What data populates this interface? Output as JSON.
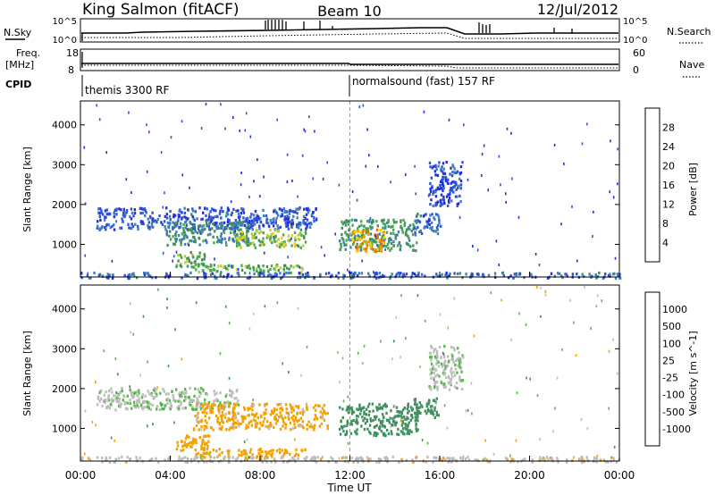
{
  "header": {
    "station": "King Salmon (fitACF)",
    "beam": "Beam 10",
    "date": "12/Jul/2012"
  },
  "top_panels": {
    "nsky_label": "N.Sky",
    "nsky_ticks": [
      "10^5",
      "10^0"
    ],
    "nsearch_ticks": [
      "10^5",
      "10^0"
    ],
    "nsearch_label": "N.Search",
    "freq_label_1": "Freq.",
    "freq_label_2": "[MHz]",
    "freq_ticks": [
      "18",
      "8"
    ],
    "nave_ticks": [
      "60",
      "0"
    ],
    "nave_label": "Nave",
    "cpid_label": "CPID",
    "cpid_segments": [
      {
        "label": "themis 3300 RF",
        "start_hour": 0
      },
      {
        "label": "normalsound (fast) 157 RF",
        "start_hour": 12
      }
    ]
  },
  "time_axis": {
    "label": "Time UT",
    "ticks": [
      "00:00",
      "04:00",
      "08:00",
      "12:00",
      "16:00",
      "20:00",
      "00:00"
    ]
  },
  "colors": {
    "power_scale": [
      "#1e2ee0",
      "#2f52d8",
      "#3f7fb8",
      "#3f8f5f",
      "#46aa48",
      "#b8c840",
      "#f0d000",
      "#f5a000",
      "#f06a00",
      "#e81c00"
    ],
    "velocity_scale": [
      "#2030c8",
      "#3a6eb8",
      "#3f8f5f",
      "#55b848",
      "#bdbdbd",
      "#bdbdbd",
      "#f5a000",
      "#f07800",
      "#ea4600",
      "#e81c00"
    ]
  },
  "chart_data": [
    {
      "type": "heatmap",
      "panel": "power",
      "ylabel": "Slant Range [km]",
      "xlabel": "",
      "y_ticks": [
        "1000",
        "2000",
        "3000",
        "4000"
      ],
      "ylim": [
        180,
        4600
      ],
      "xlim_hours": [
        0,
        24
      ],
      "colorbar": {
        "label": "Power [dB]",
        "ticks": [
          "4",
          "8",
          "12",
          "16",
          "20",
          "24",
          "28"
        ],
        "range": [
          0,
          32
        ]
      },
      "echo_regions": [
        {
          "t0": 0.7,
          "t1": 10.5,
          "r0": 1400,
          "r1": 1950,
          "value": 5
        },
        {
          "t0": 3.8,
          "t1": 7.5,
          "r0": 1000,
          "r1": 1600,
          "value": 10
        },
        {
          "t0": 4.2,
          "t1": 5.6,
          "r0": 450,
          "r1": 850,
          "value": 14
        },
        {
          "t0": 5.0,
          "t1": 10.0,
          "r0": 300,
          "r1": 520,
          "value": 14
        },
        {
          "t0": 6.8,
          "t1": 10.0,
          "r0": 950,
          "r1": 1400,
          "value": 16
        },
        {
          "t0": 11.5,
          "t1": 15.0,
          "r0": 850,
          "r1": 1650,
          "value": 12
        },
        {
          "t0": 12.0,
          "t1": 13.5,
          "r0": 850,
          "r1": 1400,
          "value": 24
        },
        {
          "t0": 14.8,
          "t1": 16.0,
          "r0": 1300,
          "r1": 1800,
          "value": 6
        },
        {
          "t0": 15.5,
          "t1": 17.0,
          "r0": 2000,
          "r1": 3100,
          "value": 4
        },
        {
          "t0": 0.0,
          "t1": 24.0,
          "r0": 180,
          "r1": 320,
          "value": 6
        }
      ]
    },
    {
      "type": "heatmap",
      "panel": "velocity",
      "ylabel": "Slant Range [km]",
      "xlabel": "Time UT",
      "y_ticks": [
        "1000",
        "2000",
        "3000",
        "4000"
      ],
      "ylim": [
        180,
        4600
      ],
      "xlim_hours": [
        0,
        24
      ],
      "colorbar": {
        "label": "Velocity [m s^-1]",
        "ticks": [
          "1000",
          "500",
          "100",
          "25",
          "-25",
          "-100",
          "-500",
          "-1000"
        ]
      },
      "echo_regions": [
        {
          "t0": 0.7,
          "t1": 7.0,
          "r0": 1500,
          "r1": 2050,
          "value": 0
        },
        {
          "t0": 5.0,
          "t1": 11.0,
          "r0": 1000,
          "r1": 1650,
          "value": -150
        },
        {
          "t0": 4.2,
          "t1": 5.8,
          "r0": 450,
          "r1": 850,
          "value": -300
        },
        {
          "t0": 5.0,
          "t1": 10.0,
          "r0": 300,
          "r1": 520,
          "value": -300
        },
        {
          "t0": 11.5,
          "t1": 15.0,
          "r0": 850,
          "r1": 1650,
          "value": 200
        },
        {
          "t0": 14.8,
          "t1": 16.0,
          "r0": 1300,
          "r1": 1800,
          "value": 300
        },
        {
          "t0": 15.5,
          "t1": 17.0,
          "r0": 2000,
          "r1": 3100,
          "value": 0
        },
        {
          "t0": 0.0,
          "t1": 24.0,
          "r0": 180,
          "r1": 320,
          "value": -50
        }
      ]
    }
  ]
}
